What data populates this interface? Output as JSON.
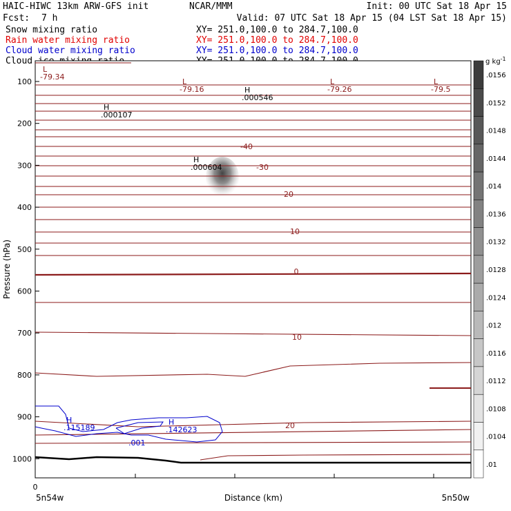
{
  "header": {
    "model": "HAIC-HIWC 13km ARW-GFS init",
    "org": "NCAR/MMM",
    "init": "Init: 00 UTC Sat 18 Apr 15",
    "fcst_label": "Fcst:",
    "fcst_value": "7 h",
    "valid": "Valid: 07 UTC Sat 18 Apr 15 (04 LST Sat 18 Apr 15)"
  },
  "fields": [
    {
      "name": "Snow mixing ratio",
      "xy": "XY= 251.0,100.0 to 284.7,100.0",
      "color": "#000000"
    },
    {
      "name": "Rain water mixing ratio",
      "xy": "XY= 251.0,100.0 to 284.7,100.0",
      "color": "#e00000"
    },
    {
      "name": "Cloud water mixing ratio",
      "xy": "XY= 251.0,100.0 to 284.7,100.0",
      "color": "#0000cc"
    },
    {
      "name": "Cloud ice mixing ratio",
      "xy": "XY= 251.0,100.0 to 284.7,100.0",
      "color": "#000000"
    }
  ],
  "chart_data": {
    "type": "cross-section",
    "ylabel": "Pressure (hPa)",
    "xlabel": "Distance (km)",
    "y_ticks": [
      100,
      200,
      300,
      400,
      500,
      600,
      700,
      800,
      900,
      1000
    ],
    "x_tick_label": "0",
    "x_left_label": "5n54w",
    "x_right_label": "5n50w",
    "isotherm_labels": [
      "-40",
      "-30",
      "-20",
      "-10",
      "0",
      "10",
      "20"
    ],
    "extrema": [
      {
        "type": "L",
        "value": "-79.34"
      },
      {
        "type": "L",
        "value": "-79.16"
      },
      {
        "type": "H",
        "value": ".000546"
      },
      {
        "type": "L",
        "value": "-79.26"
      },
      {
        "type": "L",
        "value": "-79.5"
      },
      {
        "type": "H",
        "value": ".000107"
      },
      {
        "type": "H",
        "value": ".000604"
      },
      {
        "type": "H",
        "value": ".115189"
      },
      {
        "type": "H",
        "value": ".142623"
      }
    ],
    "cloud_water_contour_label": ".001",
    "colorbar": {
      "unit": "g kg",
      "unit_exp": "-1",
      "ticks": [
        ".0156",
        ".0152",
        ".0148",
        ".0144",
        ".014",
        ".0136",
        ".0132",
        ".0128",
        ".0124",
        ".012",
        ".0116",
        ".0112",
        ".0108",
        ".0104",
        ".01"
      ]
    }
  }
}
